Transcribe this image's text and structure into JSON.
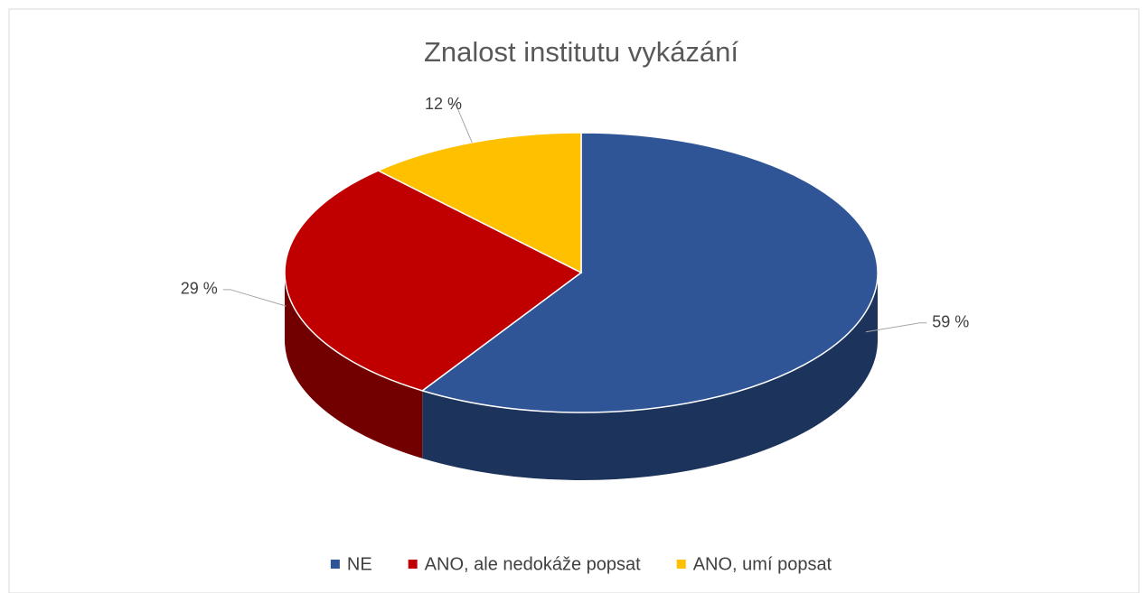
{
  "chart_data": {
    "type": "pie3d",
    "title": "Znalost institutu vykázání",
    "categories": [
      "NE",
      "ANO, ale nedokáže popsat",
      "ANO, umí popsat"
    ],
    "values": [
      59,
      29,
      12
    ],
    "value_labels": [
      "59 %",
      "29 %",
      "12 %"
    ],
    "colors": [
      "#2f5597",
      "#c00000",
      "#ffc000"
    ],
    "legend": "bottom"
  }
}
